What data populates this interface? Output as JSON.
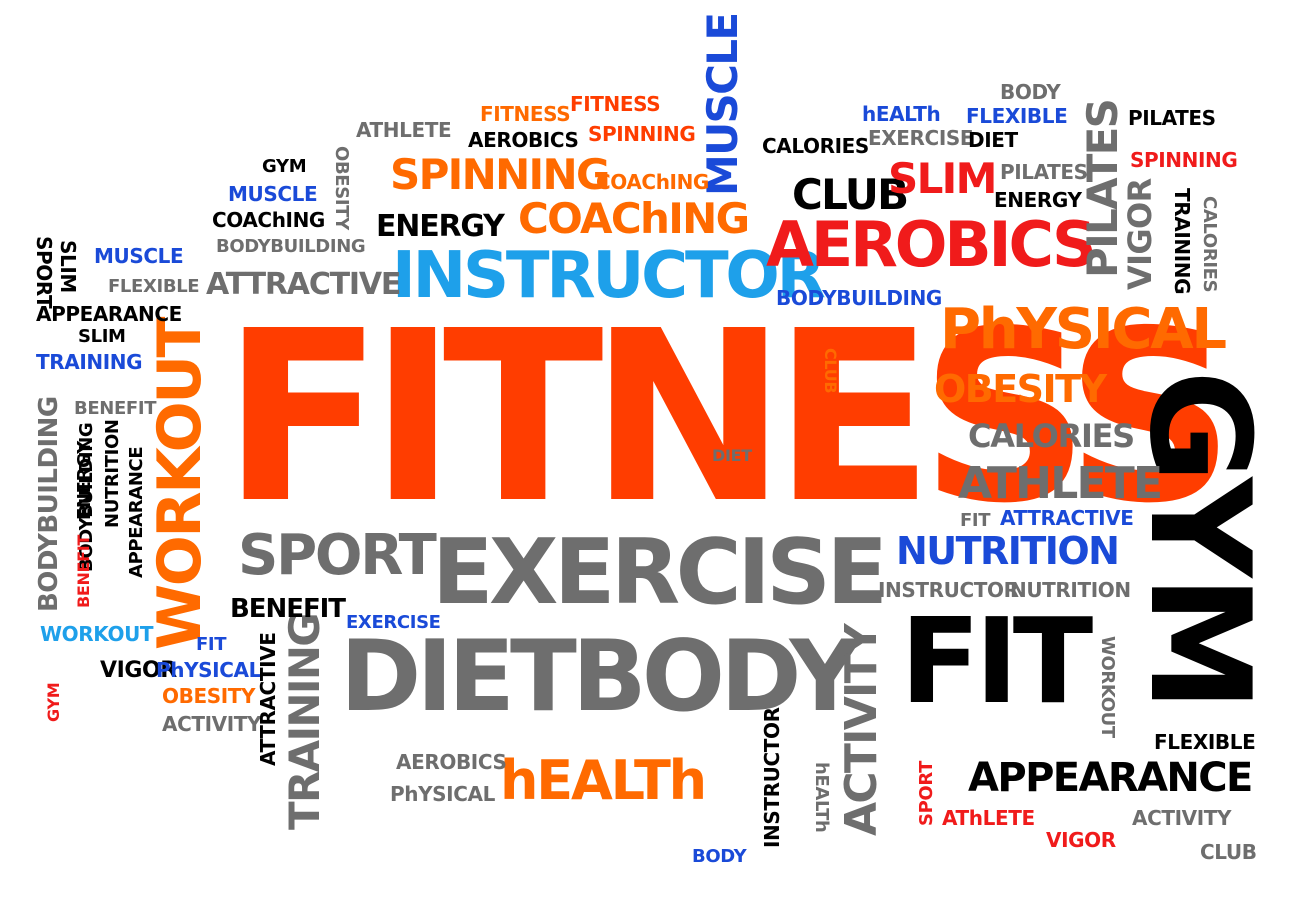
{
  "colors": {
    "orange": "#ff6a00",
    "red_orange": "#ff3d00",
    "red": "#f01b1b",
    "blue": "#1a4ad8",
    "light_blue": "#1ea0ea",
    "gray": "#6e6e6e",
    "black": "#000000"
  },
  "words": [
    {
      "text": "FITNESS"
    },
    {
      "text": "GYM"
    },
    {
      "text": "EXERCISE"
    },
    {
      "text": "DIETBODY"
    },
    {
      "text": "FIT"
    },
    {
      "text": "INSTRUCTOR"
    },
    {
      "text": "AEROBICS"
    },
    {
      "text": "PhYSICAL"
    },
    {
      "text": "SPORT"
    },
    {
      "text": "WORKOUT"
    },
    {
      "text": "hEALTh"
    },
    {
      "text": "APPEARANCE"
    },
    {
      "text": "ACTIVITY"
    },
    {
      "text": "TRAINING"
    },
    {
      "text": "NUTRITION"
    },
    {
      "text": "COAChING"
    },
    {
      "text": "SPINNING"
    },
    {
      "text": "MUSCLE"
    },
    {
      "text": "ATHLETE"
    },
    {
      "text": "OBESITY"
    },
    {
      "text": "CALORIES"
    },
    {
      "text": "CLUB"
    },
    {
      "text": "SLIM"
    },
    {
      "text": "PILATES"
    },
    {
      "text": "ENERGY"
    },
    {
      "text": "BODYBUILDING"
    },
    {
      "text": "ATTRACTIVE"
    },
    {
      "text": "BENEFIT"
    },
    {
      "text": "VIGOR"
    },
    {
      "text": "FLEXIBLE"
    },
    {
      "text": "FITNESS"
    },
    {
      "text": "FITNESS"
    },
    {
      "text": "AEROBICS"
    },
    {
      "text": "SPINNING"
    },
    {
      "text": "ATHLETE"
    },
    {
      "text": "GYM"
    },
    {
      "text": "MUSCLE"
    },
    {
      "text": "COAChING"
    },
    {
      "text": "BODYBUILDING"
    },
    {
      "text": "OBESITY"
    },
    {
      "text": "ATTRACTIVE"
    },
    {
      "text": "COAChING"
    },
    {
      "text": "ENERGY"
    },
    {
      "text": "hEALTh"
    },
    {
      "text": "EXERCISE"
    },
    {
      "text": "CALORIES"
    },
    {
      "text": "BODY"
    },
    {
      "text": "FLEXIBLE"
    },
    {
      "text": "DIET"
    },
    {
      "text": "PILATES"
    },
    {
      "text": "SPINNING"
    },
    {
      "text": "PILATES"
    },
    {
      "text": "ENERGY"
    },
    {
      "text": "VIGOR"
    },
    {
      "text": "TRAINING"
    },
    {
      "text": "CALORIES"
    },
    {
      "text": "SPORT"
    },
    {
      "text": "SLIM"
    },
    {
      "text": "MUSCLE"
    },
    {
      "text": "FLEXIBLE"
    },
    {
      "text": "APPEARANCE"
    },
    {
      "text": "SLIM"
    },
    {
      "text": "TRAINING"
    },
    {
      "text": "BODYBUILDING"
    },
    {
      "text": "CLUB"
    },
    {
      "text": "BENEFIT"
    },
    {
      "text": "BODYBUILDING"
    },
    {
      "text": "ENERGY"
    },
    {
      "text": "NUTRITION"
    },
    {
      "text": "APPEARANCE"
    },
    {
      "text": "BENEFIT"
    },
    {
      "text": "DIET"
    },
    {
      "text": "FIT"
    },
    {
      "text": "ATTRACTIVE"
    },
    {
      "text": "INSTRUCTOR"
    },
    {
      "text": "NUTRITION"
    },
    {
      "text": "BENEFIT"
    },
    {
      "text": "EXERCISE"
    },
    {
      "text": "WORKOUT"
    },
    {
      "text": "FIT"
    },
    {
      "text": "VIGOR"
    },
    {
      "text": "PhYSICAL"
    },
    {
      "text": "OBESITY"
    },
    {
      "text": "ACTIVITY"
    },
    {
      "text": "GYM"
    },
    {
      "text": "ATTRACTIVE"
    },
    {
      "text": "AEROBICS"
    },
    {
      "text": "PhYSICAL"
    },
    {
      "text": "INSTRUCTOR"
    },
    {
      "text": "hEALTh"
    },
    {
      "text": "BODY"
    },
    {
      "text": "WORKOUT"
    },
    {
      "text": "FLEXIBLE"
    },
    {
      "text": "SPORT"
    },
    {
      "text": "AThLETE"
    },
    {
      "text": "VIGOR"
    },
    {
      "text": "ACTIVITY"
    },
    {
      "text": "CLUB"
    }
  ]
}
